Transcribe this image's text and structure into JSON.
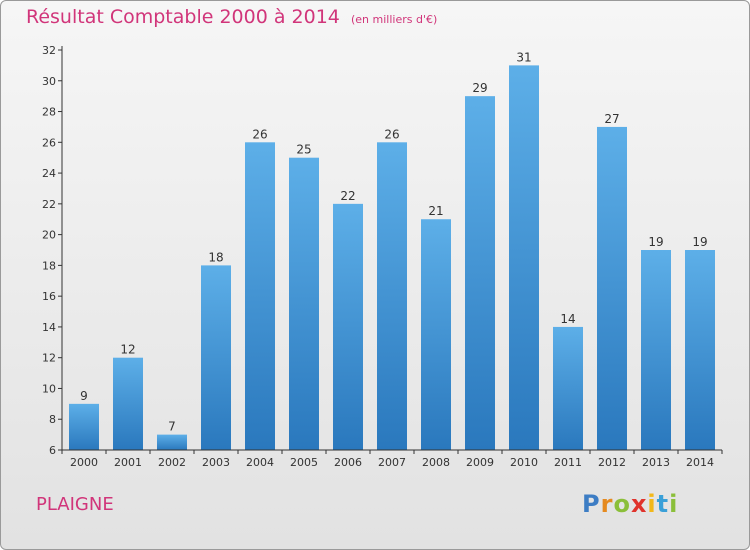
{
  "chart_data": {
    "type": "bar",
    "title": "Résultat Comptable 2000 à 2014",
    "subtitle": "(en milliers d'€)",
    "categories": [
      "2000",
      "2001",
      "2002",
      "2003",
      "2004",
      "2005",
      "2006",
      "2007",
      "2008",
      "2009",
      "2010",
      "2011",
      "2012",
      "2013",
      "2014"
    ],
    "values": [
      9,
      12,
      7,
      18,
      26,
      25,
      22,
      26,
      21,
      29,
      31,
      14,
      27,
      19,
      19
    ],
    "yticks": [
      6,
      8,
      10,
      12,
      14,
      16,
      18,
      20,
      22,
      24,
      26,
      28,
      30,
      32
    ],
    "ylim": [
      6,
      32
    ],
    "xlabel": "",
    "ylabel": "",
    "grid": false,
    "bar_color": "#3e8fd4"
  },
  "place_name": "PLAIGNE",
  "logo": {
    "letters": [
      "P",
      "r",
      "o",
      "x",
      "i",
      "t",
      "i"
    ],
    "colors": [
      "#3d7dc4",
      "#e58a1f",
      "#8bbf3a",
      "#e0332c",
      "#f2b81a",
      "#3aa0d8",
      "#8bbf3a"
    ]
  },
  "colors": {
    "accent": "#d1357a",
    "bar_top": "#5dafe8",
    "bar_bottom": "#2a78bd"
  }
}
